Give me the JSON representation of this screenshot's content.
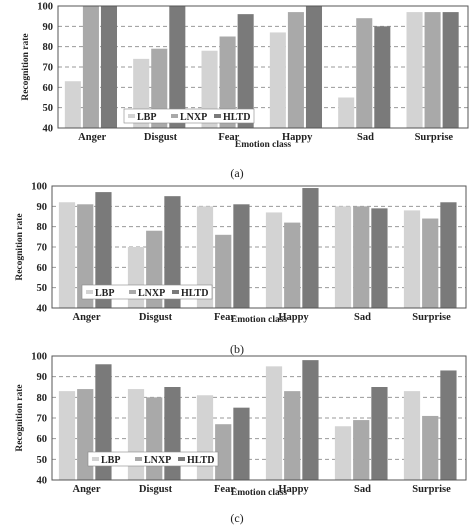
{
  "chart_data": [
    {
      "type": "bar",
      "panel_label": "(a)",
      "categories": [
        "Anger",
        "Disgust",
        "Fear",
        "Happy",
        "Sad",
        "Surprise"
      ],
      "series": [
        {
          "name": "LBP",
          "values": [
            63,
            74,
            78,
            87,
            55,
            97
          ]
        },
        {
          "name": "LNXP",
          "values": [
            100,
            79,
            85,
            97,
            94,
            97
          ]
        },
        {
          "name": "HLTD",
          "values": [
            100,
            100,
            96,
            100,
            90,
            97
          ]
        }
      ],
      "xlabel": "Emotion class",
      "ylabel": "Recognition rate",
      "ylim": [
        40,
        100
      ],
      "yticks": [
        40,
        50,
        60,
        70,
        80,
        90,
        100
      ],
      "grid": "horizontal-dashed",
      "legend_position": "bottom-left"
    },
    {
      "type": "bar",
      "panel_label": "(b)",
      "categories": [
        "Anger",
        "Disgust",
        "Fear",
        "Happy",
        "Sad",
        "Surprise"
      ],
      "series": [
        {
          "name": "LBP",
          "values": [
            92,
            70,
            90,
            87,
            90,
            88
          ]
        },
        {
          "name": "LNXP",
          "values": [
            91,
            78,
            76,
            82,
            90,
            84
          ]
        },
        {
          "name": "HLTD",
          "values": [
            97,
            95,
            91,
            99,
            89,
            92
          ]
        }
      ],
      "xlabel": "Emotion class",
      "ylabel": "Recognition rate",
      "ylim": [
        40,
        100
      ],
      "yticks": [
        40,
        50,
        60,
        70,
        80,
        90,
        100
      ],
      "grid": "horizontal-dashed",
      "legend_position": "bottom-left"
    },
    {
      "type": "bar",
      "panel_label": "(c)",
      "categories": [
        "Anger",
        "Disgust",
        "Fear",
        "Happy",
        "Sad",
        "Surprise"
      ],
      "series": [
        {
          "name": "LBP",
          "values": [
            83,
            84,
            81,
            95,
            66,
            83
          ]
        },
        {
          "name": "LNXP",
          "values": [
            84,
            80,
            67,
            83,
            69,
            71
          ]
        },
        {
          "name": "HLTD",
          "values": [
            96,
            85,
            75,
            98,
            85,
            93
          ]
        }
      ],
      "xlabel": "Emotion class",
      "ylabel": "Recognition rate",
      "ylim": [
        40,
        100
      ],
      "yticks": [
        40,
        50,
        60,
        70,
        80,
        90,
        100
      ],
      "grid": "horizontal-dashed",
      "legend_position": "bottom-left"
    }
  ],
  "colors": {
    "LBP": "#d3d3d3",
    "LNXP": "#a9a9a9",
    "HLTD": "#7a7a7a",
    "grid": "#9a9a9a",
    "frame": "#555555"
  }
}
